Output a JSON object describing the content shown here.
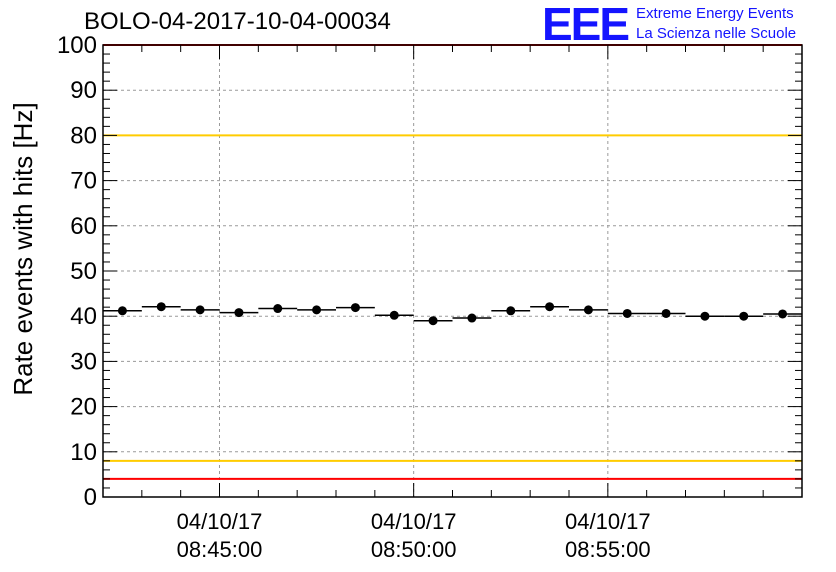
{
  "title": "BOLO-04-2017-10-04-00034",
  "logo": {
    "mark": "EEE",
    "line1": "Extreme Energy Events",
    "line2": "La Scienza nelle Scuole",
    "color": "#1414ff"
  },
  "chart_data": {
    "type": "scatter",
    "ylabel": "Rate events with hits [Hz]",
    "xlabel": "",
    "ylim": [
      0,
      100
    ],
    "yticks": [
      0,
      10,
      20,
      30,
      40,
      50,
      60,
      70,
      80,
      90,
      100
    ],
    "xlim": [
      "08:42:00",
      "09:00:00"
    ],
    "xticks": [
      {
        "x": "08:45:00",
        "line1": "04/10/17",
        "line2": "08:45:00"
      },
      {
        "x": "08:50:00",
        "line1": "04/10/17",
        "line2": "08:50:00"
      },
      {
        "x": "08:55:00",
        "line1": "04/10/17",
        "line2": "08:55:00"
      }
    ],
    "grid": true,
    "bin_width_seconds": 60,
    "x": [
      "08:42:30",
      "08:43:30",
      "08:44:30",
      "08:45:30",
      "08:46:30",
      "08:47:30",
      "08:48:30",
      "08:49:30",
      "08:50:30",
      "08:51:30",
      "08:52:30",
      "08:53:30",
      "08:54:30",
      "08:55:30",
      "08:56:30",
      "08:57:30",
      "08:58:30",
      "08:59:30"
    ],
    "series": [
      {
        "values": [
          41.2,
          42.1,
          41.4,
          40.8,
          41.7,
          41.4,
          41.9,
          40.2,
          39.0,
          39.6,
          41.2,
          42.1,
          41.4,
          40.6,
          40.6,
          40.0,
          40.0,
          40.5
        ]
      }
    ],
    "reference_lines": [
      {
        "y": 100,
        "color": "#ff0000"
      },
      {
        "y": 80,
        "color": "#ffcc00"
      },
      {
        "y": 8,
        "color": "#ffcc00"
      },
      {
        "y": 4,
        "color": "#ff0000"
      }
    ]
  }
}
